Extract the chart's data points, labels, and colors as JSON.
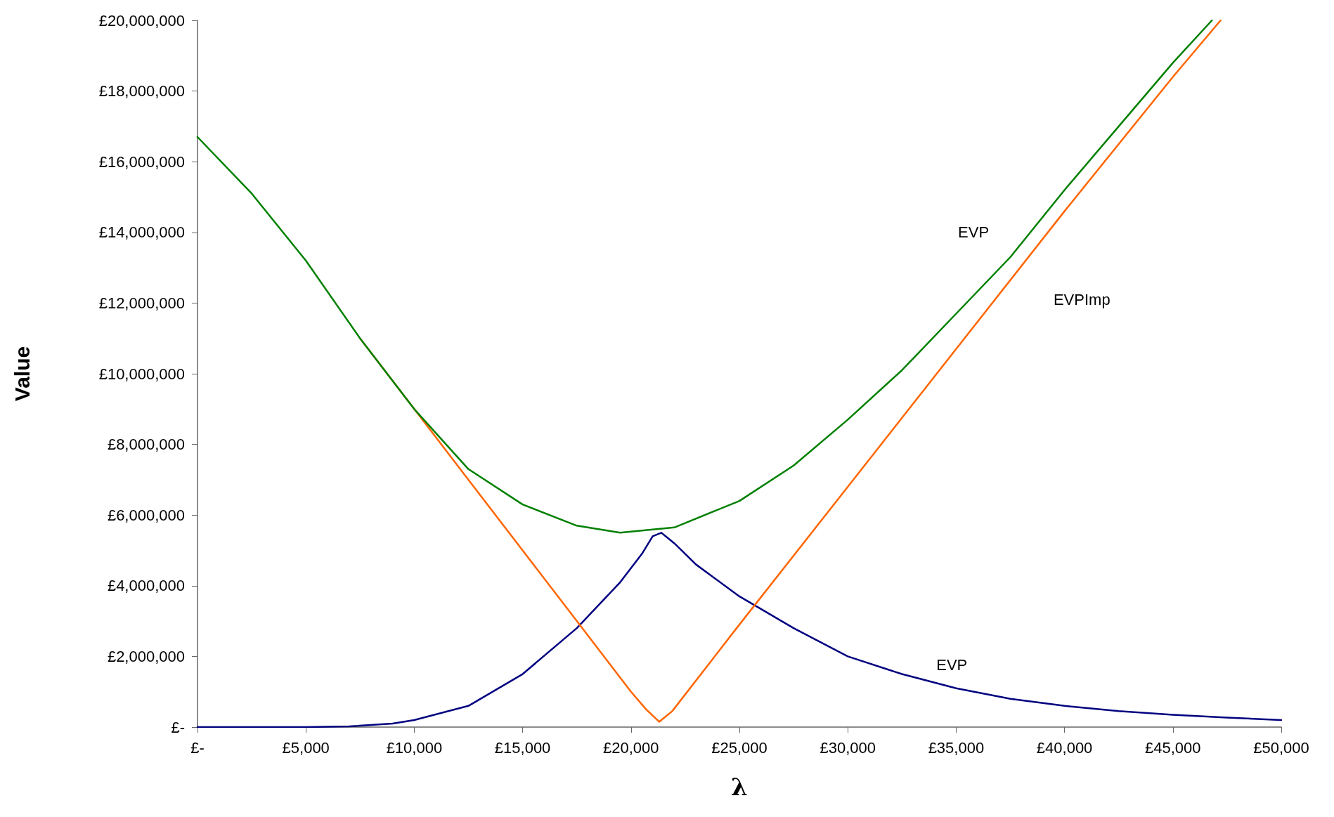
{
  "chart_data": {
    "type": "line",
    "xlabel": "λ",
    "ylabel": "Value",
    "xlim": [
      0,
      50000
    ],
    "ylim": [
      0,
      20000000
    ],
    "xticks": [
      {
        "value": 0,
        "label": "£-"
      },
      {
        "value": 5000,
        "label": "£5,000"
      },
      {
        "value": 10000,
        "label": "£10,000"
      },
      {
        "value": 15000,
        "label": "£15,000"
      },
      {
        "value": 20000,
        "label": "£20,000"
      },
      {
        "value": 25000,
        "label": "£25,000"
      },
      {
        "value": 30000,
        "label": "£30,000"
      },
      {
        "value": 35000,
        "label": "£35,000"
      },
      {
        "value": 40000,
        "label": "£40,000"
      },
      {
        "value": 45000,
        "label": "£45,000"
      },
      {
        "value": 50000,
        "label": "£50,000"
      }
    ],
    "yticks": [
      {
        "value": 0,
        "label": "£-"
      },
      {
        "value": 2000000,
        "label": "£2,000,000"
      },
      {
        "value": 4000000,
        "label": "£4,000,000"
      },
      {
        "value": 6000000,
        "label": "£6,000,000"
      },
      {
        "value": 8000000,
        "label": "£8,000,000"
      },
      {
        "value": 10000000,
        "label": "£10,000,000"
      },
      {
        "value": 12000000,
        "label": "£12,000,000"
      },
      {
        "value": 14000000,
        "label": "£14,000,000"
      },
      {
        "value": 16000000,
        "label": "£16,000,000"
      },
      {
        "value": 18000000,
        "label": "£18,000,000"
      },
      {
        "value": 20000000,
        "label": "£20,000,000"
      }
    ],
    "grid": false,
    "legend": false,
    "marker": "none",
    "line_style": "solid",
    "series": [
      {
        "name": "EVP",
        "color": "#008000",
        "x": [
          0,
          2500,
          5000,
          7500,
          10000,
          12500,
          15000,
          17500,
          19500,
          22000,
          25000,
          27500,
          30000,
          32500,
          35000,
          37500,
          40000,
          42500,
          45000,
          46800
        ],
        "values": [
          16700000,
          15100000,
          13200000,
          11000000,
          9000000,
          7300000,
          6300000,
          5700000,
          5500000,
          5650000,
          6400000,
          7400000,
          8700000,
          10100000,
          11700000,
          13300000,
          15200000,
          17000000,
          18800000,
          20000000
        ]
      },
      {
        "name": "EVPImp",
        "color": "#ff6600",
        "x": [
          7500,
          10000,
          12500,
          15000,
          17500,
          20000,
          20700,
          21300,
          21900,
          25000,
          30000,
          35000,
          40000,
          45000,
          47200
        ],
        "values": [
          11000000,
          9000000,
          7000000,
          5000000,
          3000000,
          1000000,
          500000,
          150000,
          450000,
          2900000,
          6800000,
          10700000,
          14600000,
          18400000,
          20000000
        ]
      },
      {
        "name": "EVP",
        "color": "#000080",
        "x": [
          0,
          5000,
          7000,
          9000,
          10000,
          12500,
          15000,
          17500,
          19500,
          20500,
          21000,
          21400,
          22000,
          23000,
          25000,
          27500,
          30000,
          32500,
          35000,
          37500,
          40000,
          42500,
          45000,
          47500,
          50000
        ],
        "values": [
          0,
          0,
          20000,
          100000,
          200000,
          600000,
          1500000,
          2800000,
          4100000,
          4900000,
          5400000,
          5500000,
          5200000,
          4600000,
          3700000,
          2800000,
          2000000,
          1500000,
          1100000,
          800000,
          600000,
          450000,
          350000,
          270000,
          200000
        ]
      }
    ]
  }
}
